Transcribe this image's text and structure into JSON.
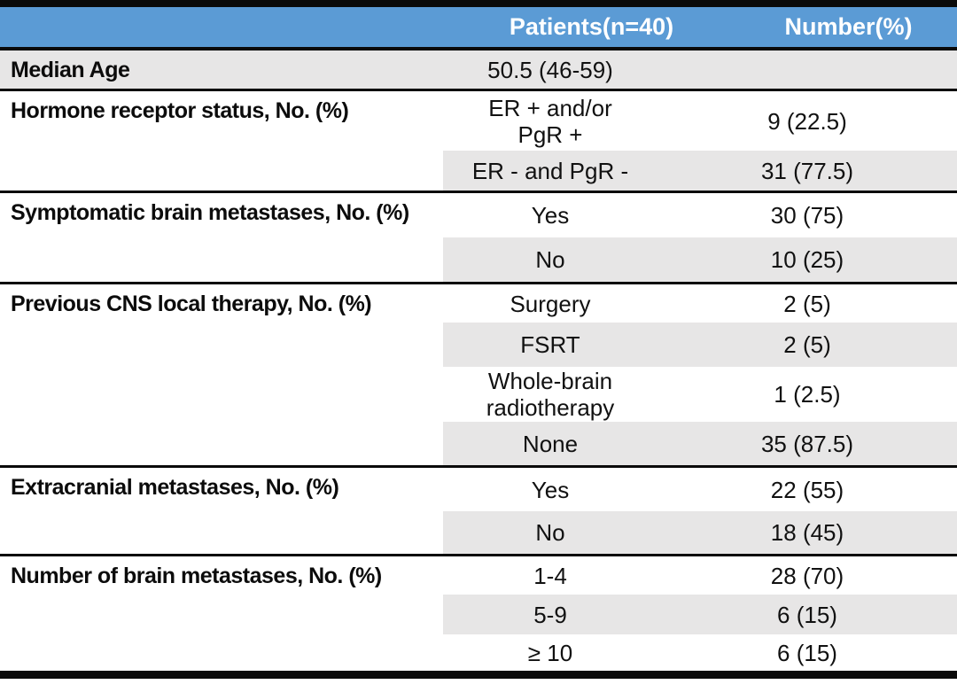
{
  "table": {
    "header": {
      "label_col": "",
      "patients": "Patients(n=40)",
      "number": "Number(%)"
    },
    "colors": {
      "header_bg": "#5B9BD5",
      "header_text": "#FFFFFF",
      "row_shade": "#E7E6E6",
      "border": "#0A0A0A"
    },
    "sections": [
      {
        "label": "Median Age",
        "full_shade": true,
        "rows": [
          {
            "patients": "50.5 (46-59)",
            "number": "",
            "shaded": true
          }
        ]
      },
      {
        "label": "Hormone receptor status, No. (%)",
        "full_shade": false,
        "rows": [
          {
            "patients": "ER + and/or\nPgR +",
            "number": "9 (22.5)",
            "shaded": false
          },
          {
            "patients": "ER - and PgR -",
            "number": "31 (77.5)",
            "shaded": true
          }
        ]
      },
      {
        "label": "Symptomatic brain metastases, No. (%)",
        "full_shade": false,
        "rows": [
          {
            "patients": "Yes",
            "number": "30 (75)",
            "shaded": false
          },
          {
            "patients": "No",
            "number": "10 (25)",
            "shaded": true
          }
        ]
      },
      {
        "label": "Previous CNS local therapy, No. (%)",
        "full_shade": false,
        "rows": [
          {
            "patients": "Surgery",
            "number": "2 (5)",
            "shaded": false
          },
          {
            "patients": "FSRT",
            "number": "2 (5)",
            "shaded": true
          },
          {
            "patients": "Whole-brain\nradiotherapy",
            "number": "1 (2.5)",
            "shaded": false
          },
          {
            "patients": "None",
            "number": "35 (87.5)",
            "shaded": true
          }
        ]
      },
      {
        "label": "Extracranial metastases, No. (%)",
        "full_shade": false,
        "rows": [
          {
            "patients": "Yes",
            "number": "22 (55)",
            "shaded": false
          },
          {
            "patients": "No",
            "number": "18 (45)",
            "shaded": true
          }
        ]
      },
      {
        "label": "Number of brain metastases, No. (%)",
        "full_shade": false,
        "rows": [
          {
            "patients": "1-4",
            "number": "28 (70)",
            "shaded": false
          },
          {
            "patients": "5-9",
            "number": "6 (15)",
            "shaded": true
          },
          {
            "patients": "≥ 10",
            "number": "6 (15)",
            "shaded": false
          }
        ]
      }
    ]
  }
}
